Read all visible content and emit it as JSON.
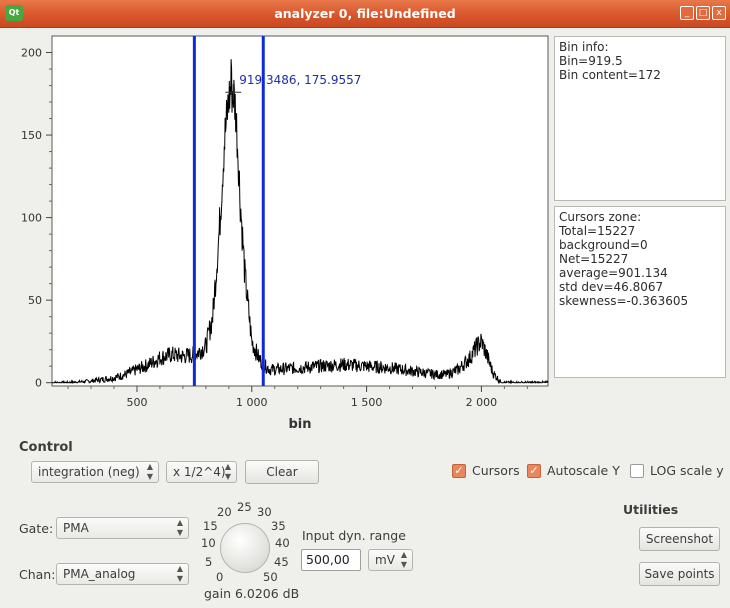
{
  "window": {
    "title": "analyzer 0, file:Undefined",
    "logo": "Qt",
    "buttons": [
      "_",
      "□",
      "x"
    ]
  },
  "chart_data": {
    "type": "line",
    "xlabel": "bin",
    "ylabel": "",
    "xlim": [
      130,
      2290
    ],
    "ylim": [
      -2,
      210
    ],
    "x_ticks": [
      500,
      1000,
      1500,
      2000
    ],
    "x_tick_labels": [
      "500",
      "1 000",
      "1 500",
      "2 000"
    ],
    "y_ticks": [
      0,
      50,
      100,
      150,
      200
    ],
    "y_tick_labels": [
      "0",
      "50",
      "100",
      "150",
      "200"
    ],
    "cursors": [
      750,
      1050
    ],
    "cursor_color": "#0f2ad6",
    "marker": {
      "x": 919.3486,
      "y": 175.9557,
      "label": "919.3486, 175.9557"
    },
    "peak_value": 196,
    "series": [
      {
        "x": [
          130,
          200,
          300,
          400,
          450,
          500,
          550,
          600,
          650,
          700,
          750,
          800,
          830,
          860,
          880,
          900,
          910,
          920,
          930,
          940,
          950,
          970,
          1000,
          1030,
          1050,
          1080,
          1100,
          1200,
          1300,
          1400,
          1500,
          1600,
          1700,
          1800,
          1850,
          1900,
          1950,
          1980,
          2000,
          2020,
          2050,
          2080,
          2100,
          2200,
          2290
        ],
        "values": [
          0,
          0,
          1,
          3,
          5,
          8,
          11,
          15,
          17,
          16,
          17,
          22,
          40,
          95,
          145,
          172,
          178,
          176,
          165,
          140,
          110,
          65,
          25,
          15,
          11,
          8,
          8,
          9,
          10,
          11,
          10,
          9,
          7,
          5,
          5,
          8,
          15,
          22,
          25,
          18,
          6,
          1,
          0,
          0,
          0
        ]
      }
    ]
  },
  "bin_info": {
    "lines": [
      "Bin info:",
      "Bin=919.5",
      "Bin content=172"
    ]
  },
  "cursors_zone": {
    "lines": [
      "Cursors zone:",
      "Total=15227",
      "background=0",
      "Net=15227",
      "average=901.134",
      "std dev=46.8067",
      "skewness=-0.363605"
    ]
  },
  "control": {
    "title": "Control",
    "mode": "integration (neg)",
    "scale": "x 1/2^4)",
    "clear": "Clear",
    "cursors_label": "Cursors",
    "cursors_checked": true,
    "autoscale_label": "Autoscale Y",
    "autoscale_checked": true,
    "log_label": "LOG scale y",
    "log_checked": false,
    "check_mark": "✓"
  },
  "gate": {
    "label": "Gate:",
    "value": "PMA"
  },
  "chan": {
    "label": "Chan:",
    "value": "PMA_analog"
  },
  "dial": {
    "numbers": [
      "5",
      "10",
      "15",
      "20",
      "25",
      "30",
      "35",
      "40",
      "45",
      "50",
      "0"
    ],
    "gain": "gain 6.0206 dB"
  },
  "input_range": {
    "label": "Input dyn. range",
    "value": "500,00",
    "unit": "mV"
  },
  "utilities": {
    "title": "Utilities",
    "screenshot": "Screenshot",
    "save_points": "Save points"
  }
}
